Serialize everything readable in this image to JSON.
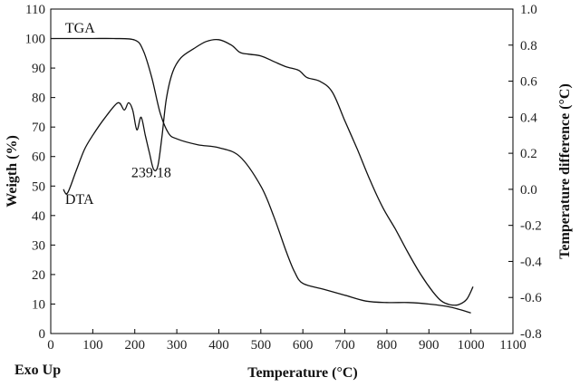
{
  "chart_data": {
    "type": "line",
    "title": "",
    "xlabel": "Temperature (°C)",
    "ylabel_left": "Weigth (%)",
    "ylabel_right": "Temperature difference (°C)",
    "corner_label": "Exo Up",
    "xlim": [
      0,
      1100
    ],
    "ylim_left": [
      0,
      110
    ],
    "ylim_right": [
      -0.8,
      1.0
    ],
    "x_ticks": [
      0,
      100,
      200,
      300,
      400,
      500,
      600,
      700,
      800,
      900,
      1000,
      1100
    ],
    "y_left_ticks": [
      0,
      10,
      20,
      30,
      40,
      50,
      60,
      70,
      80,
      90,
      100,
      110
    ],
    "y_right_ticks": [
      -0.8,
      -0.6,
      -0.4,
      -0.2,
      0.0,
      0.2,
      0.4,
      0.6,
      0.8,
      1.0
    ],
    "y_right_tick_labels": [
      "-0.8",
      "-0.6",
      "-0.4",
      "-0.2",
      "0.0",
      "0.2",
      "0.4",
      "0.6",
      "0.8",
      "1.0"
    ],
    "grid": false,
    "annotations": [
      {
        "text": "239.18",
        "x": 239.18,
        "y": 61,
        "axis": "left"
      }
    ],
    "series": [
      {
        "name": "TGA",
        "axis": "left",
        "label_at": {
          "x": 30,
          "y": 102
        },
        "x": [
          0,
          50,
          100,
          150,
          200,
          220,
          240,
          260,
          280,
          300,
          350,
          400,
          450,
          500,
          530,
          560,
          580,
          600,
          650,
          700,
          750,
          800,
          850,
          900,
          950,
          1000
        ],
        "y": [
          100,
          100,
          100,
          100,
          99.5,
          96,
          87,
          75,
          68,
          66,
          64,
          63,
          60,
          50,
          40,
          28,
          21,
          17,
          15,
          13,
          11,
          10.5,
          10.5,
          10,
          9,
          7
        ]
      },
      {
        "name": "DTA",
        "axis": "right",
        "label_at": {
          "x": 30,
          "y": 44
        },
        "x": [
          30,
          40,
          60,
          80,
          100,
          130,
          160,
          175,
          185,
          195,
          205,
          215,
          225,
          235,
          245,
          255,
          265,
          275,
          290,
          310,
          340,
          370,
          400,
          430,
          450,
          470,
          500,
          530,
          560,
          590,
          610,
          640,
          670,
          700,
          730,
          760,
          790,
          820,
          850,
          880,
          910,
          930,
          950,
          970,
          990,
          1005
        ],
        "y": [
          0.0,
          -0.02,
          0.1,
          0.22,
          0.3,
          0.4,
          0.48,
          0.44,
          0.48,
          0.44,
          0.33,
          0.4,
          0.3,
          0.2,
          0.11,
          0.13,
          0.3,
          0.5,
          0.65,
          0.73,
          0.78,
          0.82,
          0.83,
          0.8,
          0.76,
          0.75,
          0.74,
          0.71,
          0.68,
          0.66,
          0.62,
          0.6,
          0.54,
          0.38,
          0.22,
          0.05,
          -0.1,
          -0.22,
          -0.35,
          -0.47,
          -0.57,
          -0.62,
          -0.64,
          -0.64,
          -0.61,
          -0.54
        ]
      }
    ]
  }
}
